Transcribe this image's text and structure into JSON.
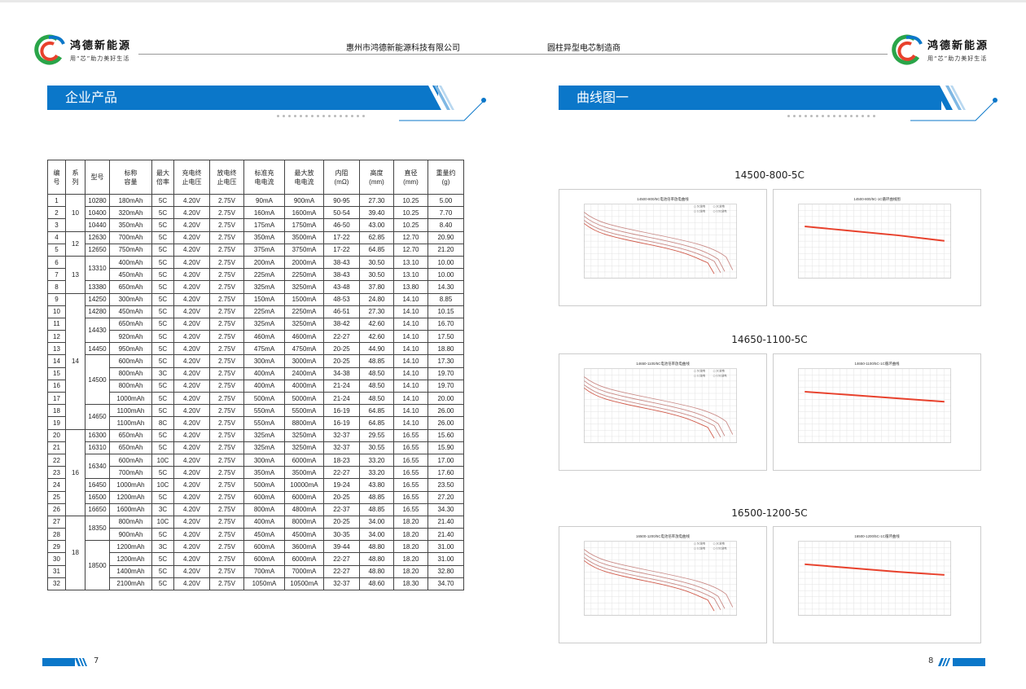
{
  "brand": {
    "name": "鸿德新能源",
    "slogan": "用“芯”助力美好生活"
  },
  "header": {
    "company": "惠州市鸿德新能源科技有限公司",
    "subtitle": "圆柱异型电芯制造商"
  },
  "left_section": {
    "title": "企业产品",
    "page_number": "7"
  },
  "right_section": {
    "title": "曲线图一",
    "page_number": "8"
  },
  "table": {
    "headers": [
      "编\n号",
      "系\n列",
      "型号",
      "标称\n容量",
      "最大\n倍率",
      "充电终\n止电压",
      "放电终\n止电压",
      "标准充\n电电流",
      "最大放\n电电流",
      "内阻\n(mΩ)",
      "高度\n(mm)",
      "直径\n(mm)",
      "重量约\n(g)"
    ],
    "rows": [
      [
        "1",
        "10",
        "10280",
        "180mAh",
        "5C",
        "4.20V",
        "2.75V",
        "90mA",
        "900mA",
        "90-95",
        "27.30",
        "10.25",
        "5.00"
      ],
      [
        "2",
        "",
        "10400",
        "320mAh",
        "5C",
        "4.20V",
        "2.75V",
        "160mA",
        "1600mA",
        "50-54",
        "39.40",
        "10.25",
        "7.70"
      ],
      [
        "3",
        "",
        "10440",
        "350mAh",
        "5C",
        "4.20V",
        "2.75V",
        "175mA",
        "1750mA",
        "46-50",
        "43.00",
        "10.25",
        "8.40"
      ],
      [
        "4",
        "12",
        "12630",
        "700mAh",
        "5C",
        "4.20V",
        "2.75V",
        "350mA",
        "3500mA",
        "17-22",
        "62.85",
        "12.70",
        "20.90"
      ],
      [
        "5",
        "",
        "12650",
        "750mAh",
        "5C",
        "4.20V",
        "2.75V",
        "375mA",
        "3750mA",
        "17-22",
        "64.85",
        "12.70",
        "21.20"
      ],
      [
        "6",
        "13",
        "13310",
        "400mAh",
        "5C",
        "4.20V",
        "2.75V",
        "200mA",
        "2000mA",
        "38-43",
        "30.50",
        "13.10",
        "10.00"
      ],
      [
        "7",
        "",
        "",
        "450mAh",
        "5C",
        "4.20V",
        "2.75V",
        "225mA",
        "2250mA",
        "38-43",
        "30.50",
        "13.10",
        "10.00"
      ],
      [
        "8",
        "",
        "13380",
        "650mAh",
        "5C",
        "4.20V",
        "2.75V",
        "325mA",
        "3250mA",
        "43-48",
        "37.80",
        "13.80",
        "14.30"
      ],
      [
        "9",
        "14",
        "14250",
        "300mAh",
        "5C",
        "4.20V",
        "2.75V",
        "150mA",
        "1500mA",
        "48-53",
        "24.80",
        "14.10",
        "8.85"
      ],
      [
        "10",
        "",
        "14280",
        "450mAh",
        "5C",
        "4.20V",
        "2.75V",
        "225mA",
        "2250mA",
        "46-51",
        "27.30",
        "14.10",
        "10.15"
      ],
      [
        "11",
        "",
        "14430",
        "650mAh",
        "5C",
        "4.20V",
        "2.75V",
        "325mA",
        "3250mA",
        "38-42",
        "42.60",
        "14.10",
        "16.70"
      ],
      [
        "12",
        "",
        "",
        "920mAh",
        "5C",
        "4.20V",
        "2.75V",
        "460mA",
        "4600mA",
        "22-27",
        "42.60",
        "14.10",
        "17.50"
      ],
      [
        "13",
        "",
        "14450",
        "950mAh",
        "5C",
        "4.20V",
        "2.75V",
        "475mA",
        "4750mA",
        "20-25",
        "44.90",
        "14.10",
        "18.80"
      ],
      [
        "14",
        "",
        "14500",
        "600mAh",
        "5C",
        "4.20V",
        "2.75V",
        "300mA",
        "3000mA",
        "20-25",
        "48.85",
        "14.10",
        "17.30"
      ],
      [
        "15",
        "",
        "",
        "800mAh",
        "3C",
        "4.20V",
        "2.75V",
        "400mA",
        "2400mA",
        "34-38",
        "48.50",
        "14.10",
        "19.70"
      ],
      [
        "16",
        "",
        "",
        "800mAh",
        "5C",
        "4.20V",
        "2.75V",
        "400mA",
        "4000mA",
        "21-24",
        "48.50",
        "14.10",
        "19.70"
      ],
      [
        "17",
        "",
        "",
        "1000mAh",
        "5C",
        "4.20V",
        "2.75V",
        "500mA",
        "5000mA",
        "21-24",
        "48.50",
        "14.10",
        "20.00"
      ],
      [
        "18",
        "",
        "14650",
        "1100mAh",
        "5C",
        "4.20V",
        "2.75V",
        "550mA",
        "5500mA",
        "16-19",
        "64.85",
        "14.10",
        "26.00"
      ],
      [
        "19",
        "",
        "",
        "1100mAh",
        "8C",
        "4.20V",
        "2.75V",
        "550mA",
        "8800mA",
        "16-19",
        "64.85",
        "14.10",
        "26.00"
      ],
      [
        "20",
        "16",
        "16300",
        "650mAh",
        "5C",
        "4.20V",
        "2.75V",
        "325mA",
        "3250mA",
        "32-37",
        "29.55",
        "16.55",
        "15.60"
      ],
      [
        "21",
        "",
        "16310",
        "650mAh",
        "5C",
        "4.20V",
        "2.75V",
        "325mA",
        "3250mA",
        "32-37",
        "30.55",
        "16.55",
        "15.90"
      ],
      [
        "22",
        "",
        "16340",
        "600mAh",
        "10C",
        "4.20V",
        "2.75V",
        "300mA",
        "6000mA",
        "18-23",
        "33.20",
        "16.55",
        "17.00"
      ],
      [
        "23",
        "",
        "",
        "700mAh",
        "5C",
        "4.20V",
        "2.75V",
        "350mA",
        "3500mA",
        "22-27",
        "33.20",
        "16.55",
        "17.60"
      ],
      [
        "24",
        "",
        "16450",
        "1000mAh",
        "10C",
        "4.20V",
        "2.75V",
        "500mA",
        "10000mA",
        "19-24",
        "43.80",
        "16.55",
        "23.50"
      ],
      [
        "25",
        "",
        "16500",
        "1200mAh",
        "5C",
        "4.20V",
        "2.75V",
        "600mA",
        "6000mA",
        "20-25",
        "48.85",
        "16.55",
        "27.20"
      ],
      [
        "26",
        "",
        "16650",
        "1600mAh",
        "3C",
        "4.20V",
        "2.75V",
        "800mA",
        "4800mA",
        "22-37",
        "48.85",
        "16.55",
        "34.30"
      ],
      [
        "27",
        "18",
        "18350",
        "800mAh",
        "10C",
        "4.20V",
        "2.75V",
        "400mA",
        "8000mA",
        "20-25",
        "34.00",
        "18.20",
        "21.40"
      ],
      [
        "28",
        "",
        "",
        "900mAh",
        "5C",
        "4.20V",
        "2.75V",
        "450mA",
        "4500mA",
        "30-35",
        "34.00",
        "18.20",
        "21.40"
      ],
      [
        "29",
        "",
        "18500",
        "1200mAh",
        "3C",
        "4.20V",
        "2.75V",
        "600mA",
        "3600mA",
        "39-44",
        "48.80",
        "18.20",
        "31.00"
      ],
      [
        "30",
        "",
        "",
        "1200mAh",
        "5C",
        "4.20V",
        "2.75V",
        "600mA",
        "6000mA",
        "22-27",
        "48.80",
        "18.20",
        "31.00"
      ],
      [
        "31",
        "",
        "",
        "1400mAh",
        "5C",
        "4.20V",
        "2.75V",
        "700mA",
        "7000mA",
        "22-27",
        "48.80",
        "18.20",
        "32.80"
      ],
      [
        "32",
        "",
        "",
        "2100mAh",
        "5C",
        "4.20V",
        "2.75V",
        "1050mA",
        "10500mA",
        "32-37",
        "48.60",
        "18.30",
        "34.70"
      ]
    ]
  },
  "chart_data": [
    {
      "type": "line",
      "caption": "14500-800-5C",
      "title": "14500-800/5C电池倍率放电曲线",
      "series": [
        {
          "name": "5C放电"
        },
        {
          "name": "3C放电"
        },
        {
          "name": "1C放电"
        },
        {
          "name": "0.5C放电"
        }
      ]
    },
    {
      "type": "line",
      "caption": "14500-800-5C",
      "title": "14500-800/5C-1C循环曲线图",
      "values": [
        800,
        760,
        720,
        670
      ]
    },
    {
      "type": "line",
      "caption": "14650-1100-5C",
      "title": "14650-1100/5C电池倍率放电曲线",
      "series": [
        {
          "name": "5C放电"
        },
        {
          "name": "3C放电"
        },
        {
          "name": "1C放电"
        },
        {
          "name": "0.5C放电"
        }
      ]
    },
    {
      "type": "line",
      "caption": "14650-1100-5C",
      "title": "14650-1100/5C-1C循环曲线",
      "values": [
        1100,
        1060,
        1020,
        980
      ]
    },
    {
      "type": "line",
      "caption": "16500-1200-5C",
      "title": "16500-1200/5C电池倍率放电曲线",
      "series": [
        {
          "name": "5C放电"
        },
        {
          "name": "3C放电"
        },
        {
          "name": "1C放电"
        },
        {
          "name": "0.5C放电"
        }
      ]
    },
    {
      "type": "line",
      "caption": "16500-1200-5C",
      "title": "16500-1200/5C-1C循环曲线",
      "values": [
        1200,
        1150,
        1100,
        1060
      ]
    }
  ],
  "colors": {
    "accent": "#0b77c9",
    "curve": "#e8412c",
    "curve_light": "#c98a86"
  }
}
